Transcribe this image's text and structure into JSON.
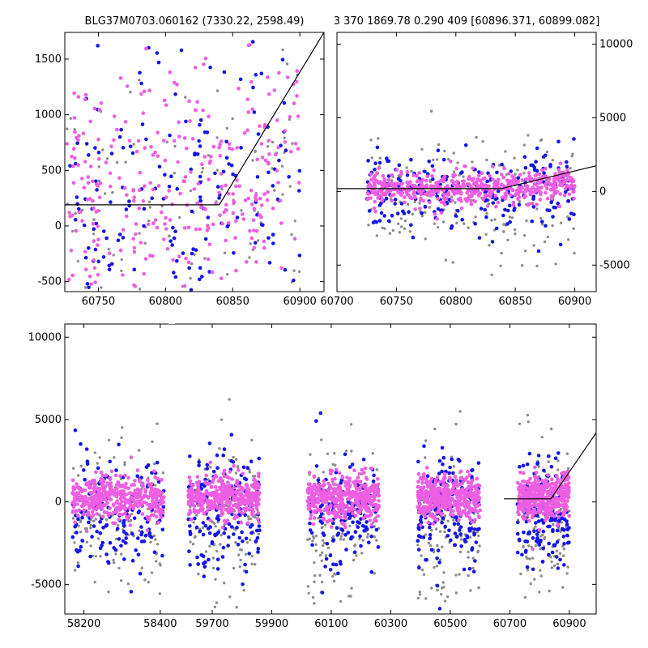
{
  "chart_data": [
    {
      "type": "scatter",
      "panel": "top-left",
      "title": "BLG37M0703.060162 (7330.22, 2598.49)",
      "xlim": [
        60725,
        60918
      ],
      "ylim": [
        -590,
        1740
      ],
      "xticks": [
        60750,
        60800,
        60850,
        60900
      ],
      "yticks": [
        -500,
        0,
        500,
        1000,
        1500
      ],
      "yaxis_side": "left",
      "model_line": [
        [
          60725,
          190
        ],
        [
          60840,
          190
        ],
        [
          60918,
          1740
        ]
      ],
      "series": [
        {
          "color": "#8c8c8c",
          "count": 120,
          "band": [
            60725,
            60900
          ],
          "center": 150,
          "spread": 600
        },
        {
          "color": "#1414e6",
          "count": 170,
          "band": [
            60728,
            60900
          ],
          "center": 250,
          "spread": 600
        },
        {
          "color": "#ee5ee2",
          "count": 320,
          "band": [
            60725,
            60900
          ],
          "center": 350,
          "spread": 550
        }
      ]
    },
    {
      "type": "scatter",
      "panel": "top-right",
      "title": "3 370 1869.78 0.290 409 [60896.371, 60899.082]",
      "xlim": [
        60700,
        60918
      ],
      "ylim": [
        -6800,
        10800
      ],
      "xticks": [
        60700,
        60750,
        60800,
        60850,
        60900
      ],
      "yticks": [
        -5000,
        0,
        5000,
        10000
      ],
      "yaxis_side": "right",
      "model_line": [
        [
          60700,
          190
        ],
        [
          60838,
          190
        ],
        [
          60918,
          1740
        ]
      ],
      "series": [
        {
          "color": "#8c8c8c",
          "count": 170,
          "band": [
            60725,
            60900
          ],
          "center": -600,
          "spread": 2200
        },
        {
          "color": "#1414e6",
          "count": 230,
          "band": [
            60725,
            60900
          ],
          "center": -200,
          "spread": 1400
        },
        {
          "color": "#ee5ee2",
          "count": 520,
          "band": [
            60725,
            60900
          ],
          "center": 200,
          "spread": 550
        }
      ]
    },
    {
      "type": "scatter",
      "panel": "bottom",
      "title": "",
      "ylim": [
        -6800,
        10800
      ],
      "yticks": [
        -5000,
        0,
        5000,
        10000
      ],
      "yaxis_side": "left",
      "segments": [
        {
          "xlim": [
            58150,
            58430
          ],
          "xticks": [
            58200,
            58400
          ]
        },
        {
          "xlim": [
            59575,
            60990
          ],
          "xticks": [
            59700,
            59900,
            60100,
            60300,
            60500,
            60700,
            60900
          ]
        }
      ],
      "seasons": [
        {
          "range": [
            58170,
            58410
          ]
        },
        {
          "range": [
            59620,
            59860
          ]
        },
        {
          "range": [
            60020,
            60260
          ]
        },
        {
          "range": [
            60390,
            60600
          ]
        },
        {
          "range": [
            60725,
            60900
          ]
        }
      ],
      "model_line": [
        [
          60680,
          190
        ],
        [
          60838,
          190
        ],
        [
          60990,
          4200
        ]
      ],
      "series": [
        {
          "color": "#8c8c8c",
          "per_season": 130,
          "center": -1300,
          "spread": 2400
        },
        {
          "color": "#1414e6",
          "per_season": 160,
          "center": -700,
          "spread": 1700
        },
        {
          "color": "#ee5ee2",
          "per_season": 420,
          "center": 250,
          "spread": 650
        }
      ]
    }
  ]
}
